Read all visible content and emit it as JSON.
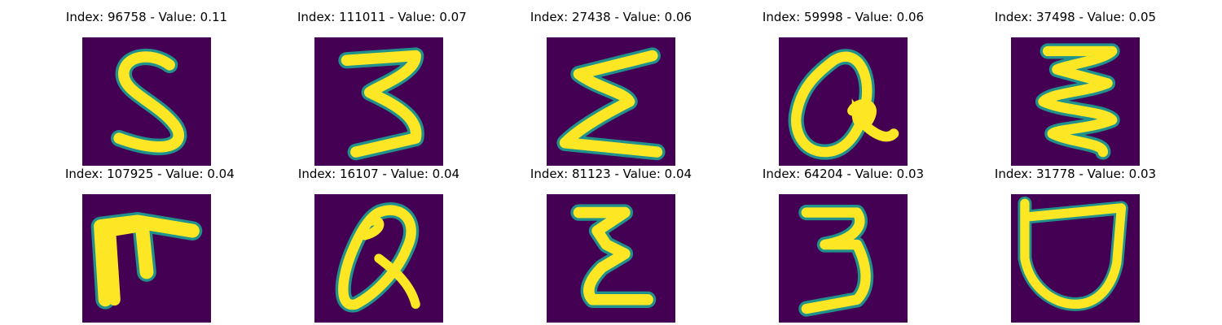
{
  "panels": [
    {
      "title": "Index: 96758 - Value: 0.11",
      "glyph": "S-shape"
    },
    {
      "title": "Index: 111011 - Value: 0.07",
      "glyph": "3-shape"
    },
    {
      "title": "Index: 27438 - Value: 0.06",
      "glyph": "sigma-shape"
    },
    {
      "title": "Index: 59998 - Value: 0.06",
      "glyph": "a-shape"
    },
    {
      "title": "Index: 37498 - Value: 0.05",
      "glyph": "zigzag-shape"
    },
    {
      "title": "Index: 107925 - Value: 0.04",
      "glyph": "F-shape"
    },
    {
      "title": "Index: 16107 - Value: 0.04",
      "glyph": "a-shape"
    },
    {
      "title": "Index: 81123 - Value: 0.04",
      "glyph": "z-shape"
    },
    {
      "title": "Index: 64204 - Value: 0.03",
      "glyph": "3-shape"
    },
    {
      "title": "Index: 31778 - Value: 0.03",
      "glyph": "D-shape"
    }
  ],
  "colors": {
    "background": "#440154",
    "stroke": "#fde725",
    "edge": "#21918c"
  }
}
